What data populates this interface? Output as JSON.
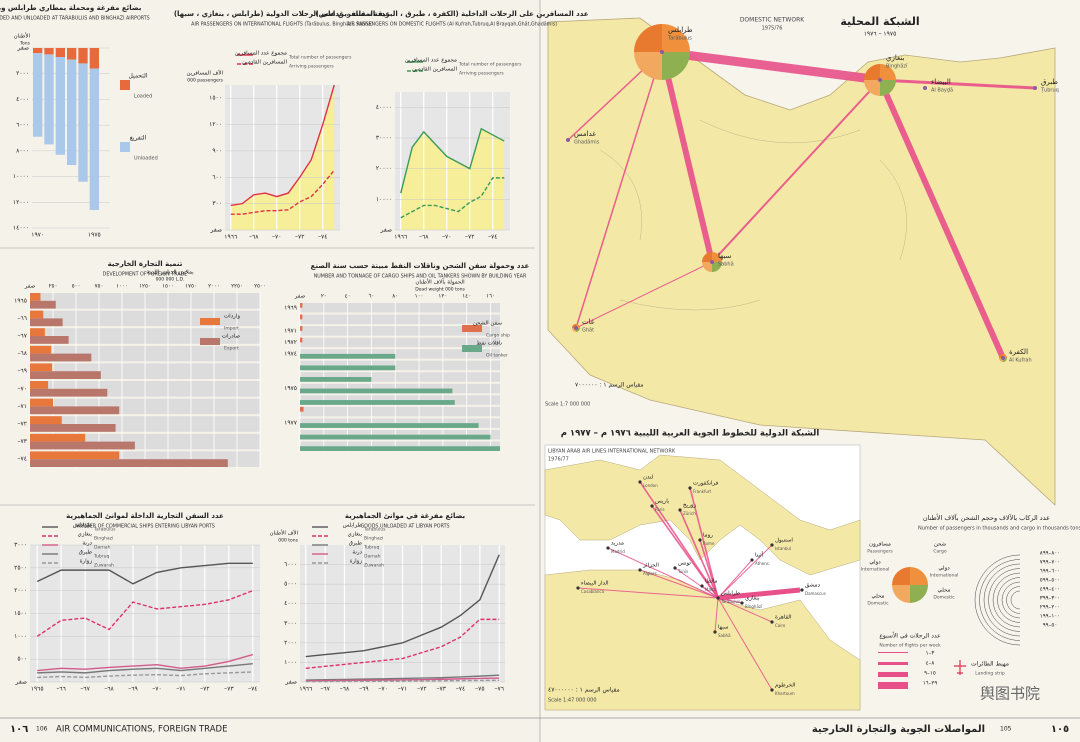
{
  "page": {
    "left_num_ar": "١٠٦",
    "left_num": "106",
    "left_title": "AIR COMMUNICATIONS, FOREIGN TRADE",
    "right_num": "105",
    "right_num_ar": "١٠٥",
    "right_title": "المواصلات الجوية والتجارة الخارجية",
    "watermark": "舆图书院"
  },
  "map": {
    "title_ar": "الشبكة المحلية",
    "title": "DOMESTIC NETWORK",
    "years": "1975/76",
    "years_ar": "١٩٧٥ – ١٩٧٦",
    "scale": "Scale 1:7 000 000",
    "scale_ar": "مقياس الرسم ١ : ٧٠٠٠٠٠٠",
    "cities": [
      {
        "name": "Tarābulus",
        "ar": "طرابلس"
      },
      {
        "name": "Binghāzī",
        "ar": "بنغازي"
      },
      {
        "name": "Sabhā",
        "ar": "سبها"
      },
      {
        "name": "Ghāt",
        "ar": "غات"
      },
      {
        "name": "Al Kufrah",
        "ar": "الكفرة"
      },
      {
        "name": "Ghadāmis",
        "ar": "غدامس"
      },
      {
        "name": "Al Bayḑā",
        "ar": "البيضاء"
      },
      {
        "name": "Ṭubruq",
        "ar": "طبرق"
      }
    ],
    "intl_title_ar": "الشبكة الدولية للخطوط الجوية العربية الليبية ١٩٧٦ م – ١٩٧٧ م",
    "intl_title": "LIBYAN ARAB AIR LINES INTERNATIONAL NETWORK",
    "intl_years": "1976/77",
    "intl_scale": "Scale 1:47 000 000",
    "intl_scale_ar": "مقياس الرسم ١ : ٤٧٠٠٠٠٠٠",
    "intl_cities": [
      {
        "name": "London",
        "ar": "لندن"
      },
      {
        "name": "Paris",
        "ar": "باريس"
      },
      {
        "name": "Frankfurt",
        "ar": "فرانكفورت"
      },
      {
        "name": "Zürich",
        "ar": "زوريخ"
      },
      {
        "name": "Rome",
        "ar": "روما"
      },
      {
        "name": "Madrid",
        "ar": "مدريد"
      },
      {
        "name": "Casablanca",
        "ar": "الدار البيضاء"
      },
      {
        "name": "Algiers",
        "ar": "الجزائر"
      },
      {
        "name": "Tunis",
        "ar": "تونس"
      },
      {
        "name": "Malta",
        "ar": "مالطا"
      },
      {
        "name": "Athens",
        "ar": "أثينا"
      },
      {
        "name": "Istanbul",
        "ar": "استنبول"
      },
      {
        "name": "Damascus",
        "ar": "دمشق"
      },
      {
        "name": "Cairo",
        "ar": "القاهرة"
      },
      {
        "name": "Khartoum",
        "ar": "الخرطوم"
      },
      {
        "name": "Tarābulus",
        "ar": "طرابلس"
      },
      {
        "name": "Binghāzī",
        "ar": "بنغازي"
      },
      {
        "name": "Sabhā",
        "ar": "سبها"
      }
    ],
    "legend_title_ar": "عدد الركاب بالآلاف وحجم الشحن بآلاف الأطنان",
    "legend_title": "Number of passengers in thousands and cargo in thousands  tons",
    "passengers": "Passengers",
    "passengers_ar": "مسافرون",
    "cargo": "Cargo",
    "cargo_ar": "شحن",
    "international": "International",
    "international_ar": "دولي",
    "domestic": "Domestic",
    "domestic_ar": "محلي",
    "flights_title_ar": "عدد الرحلات في الأسبوع",
    "flights_title": "Number of flights per week",
    "flights": [
      "٣–١",
      "٨–٤",
      "١٥–٩",
      "٢٩–١٦"
    ],
    "sizes": [
      "٨٠٠–٨٩٩",
      "٧٠٠–٧٩٩",
      "٦٠٠–٦٩٩",
      "٥٠٠–٥٩٩",
      "٤٠٠–٤٩٩",
      "٣٠٠–٣٩٩",
      "٢٠٠–٢٩٩",
      "١٠٠–١٩٩",
      "٥٠–٩٩"
    ],
    "airport_ar": "مهبط الطائرات",
    "airport": "Landing strip"
  },
  "chart_data": [
    {
      "type": "line",
      "title_ar": "عدد المسافرين على الرحلات الدولية (طرابلس ، بنغازي ، سبها)",
      "title": "AIR PASSENGERS ON INTERNATIONAL FLIGHTS (Tarābulus, Binghāzī, Sabhā)",
      "ylabel_ar": "الآف المسافرين",
      "ylabel": "000 passengers",
      "x": [
        1966,
        1967,
        1968,
        1969,
        1970,
        1971,
        1972,
        1973,
        1974,
        1975
      ],
      "xlim": [
        1965.5,
        1975.5
      ],
      "xticks": [
        {
          "value": 1966,
          "label": "١٩٦٦"
        },
        {
          "value": 1968,
          "label": "–٦٨"
        },
        {
          "value": 1970,
          "label": "–٧٠"
        },
        {
          "value": 1972,
          "label": "–٧٢"
        },
        {
          "value": 1974,
          "label": "–٧٤"
        }
      ],
      "ylim": [
        0,
        1650
      ],
      "yticks": [
        {
          "value": 0,
          "label": "صفر"
        },
        {
          "value": 300,
          "label": "٣٠٠"
        },
        {
          "value": 600,
          "label": "٦٠٠"
        },
        {
          "value": 900,
          "label": "٩٠٠"
        },
        {
          "value": 1200,
          "label": "١٢٠٠"
        },
        {
          "value": 1500,
          "label": "١٥٠٠"
        }
      ],
      "series": [
        {
          "name": "Total number of passengers",
          "name_ar": "مجموع عدد المسافرين",
          "color": "#e0304a",
          "fill": "#f6ee98",
          "values": [
            280,
            300,
            400,
            420,
            380,
            420,
            600,
            800,
            1200,
            1650
          ]
        },
        {
          "name": "Arriving passengers",
          "name_ar": "المسافرين القادمين",
          "color": "#e0304a",
          "dash": true,
          "values": [
            180,
            180,
            200,
            220,
            220,
            230,
            320,
            380,
            520,
            680
          ]
        }
      ]
    },
    {
      "type": "line",
      "title_ar": "عدد المسافرين على الرحلات الداخلية (الكفرة ، طبرق ، البريقة ، غات ، غدامس)",
      "title": "AIR PASSENGERS ON DOMESTIC FLIGHTS (Al Kufrah,Tubruq,Al Brayqah,Ghāt,Ghadāmis)",
      "x": [
        1966,
        1967,
        1968,
        1969,
        1970,
        1971,
        1972,
        1973,
        1974,
        1975
      ],
      "xlim": [
        1965.5,
        1975.5
      ],
      "xticks": [
        {
          "value": 1966,
          "label": "١٩٦٦"
        },
        {
          "value": 1968,
          "label": "–٦٨"
        },
        {
          "value": 1970,
          "label": "–٧٠"
        },
        {
          "value": 1972,
          "label": "–٧٢"
        },
        {
          "value": 1974,
          "label": "–٧٤"
        }
      ],
      "ylim": [
        0,
        45000
      ],
      "yticks": [
        {
          "value": 0,
          "label": "صفر"
        },
        {
          "value": 10000,
          "label": "١٠٠٠٠"
        },
        {
          "value": 20000,
          "label": "٢٠٠٠٠"
        },
        {
          "value": 30000,
          "label": "٣٠٠٠٠"
        },
        {
          "value": 40000,
          "label": "٤٠٠٠٠"
        }
      ],
      "series": [
        {
          "name": "Total number of passengers",
          "name_ar": "مجموع عدد المسافرين",
          "color": "#3c9a5a",
          "fill": "#f6ee98",
          "values": [
            12000,
            27000,
            32000,
            28000,
            24000,
            22000,
            20000,
            33000,
            31000,
            29000
          ]
        },
        {
          "name": "Arriving passengers",
          "name_ar": "المسافرين القادمين",
          "color": "#3c9a5a",
          "dash": true,
          "values": [
            4000,
            6000,
            8000,
            8000,
            7000,
            6000,
            9000,
            11000,
            17000,
            17000
          ]
        }
      ]
    },
    {
      "type": "bar-down",
      "title_ar": "بضائع مفرغة ومحملة بمطاري طرابلس وبنغازي",
      "title": "GOODS LOADED AND UNLOADED AT TARABULUS AND BINGHAZI AIRPORTS",
      "ylabel": "Tons",
      "ylabel_ar": "الأطنان",
      "categories": [
        "١٩٧٠",
        null,
        null,
        null,
        null,
        "١٩٧٥"
      ],
      "ylim": [
        0,
        14000
      ],
      "yticks": [
        {
          "value": 0,
          "label": "صفر"
        },
        {
          "value": 2000,
          "label": "٢٠٠٠"
        },
        {
          "value": 4000,
          "label": "٤٠٠٠"
        },
        {
          "value": 6000,
          "label": "٦٠٠٠"
        },
        {
          "value": 8000,
          "label": "٨٠٠٠"
        },
        {
          "value": 10000,
          "label": "١٠٠٠٠"
        },
        {
          "value": 12000,
          "label": "١٢٠٠٠"
        },
        {
          "value": 14000,
          "label": "١٤٠٠٠"
        }
      ],
      "series": [
        {
          "name": "Loaded",
          "name_ar": "التحميل",
          "color": "#e86a3c",
          "values": [
            400,
            500,
            700,
            900,
            1200,
            1600
          ]
        },
        {
          "name": "Unloaded",
          "name_ar": "التفريغ",
          "color": "#a9c8ea",
          "values": [
            6500,
            7000,
            7600,
            8200,
            9200,
            11000
          ]
        }
      ]
    },
    {
      "type": "hbar",
      "title": "DEVELOPMENT OF FOREIGN TRADE",
      "title_ar": "تنمية التجارة الخارجية",
      "xlabel": "000 000 L.D.",
      "xlabel_ar": "بملايين الدنانير الليبية",
      "categories": [
        "١٩٦٥",
        "–٦٦",
        "–٦٧",
        "–٦٨",
        "–٦٩",
        "–٧٠",
        "–٧١",
        "–٧٢",
        "–٧٣",
        "–٧٤"
      ],
      "xlim": [
        0,
        2500
      ],
      "xticks": [
        {
          "value": 0,
          "label": "صفر"
        },
        {
          "value": 250,
          "label": "٢٥٠"
        },
        {
          "value": 500,
          "label": "٥٠٠"
        },
        {
          "value": 750,
          "label": "٧٥٠"
        },
        {
          "value": 1000,
          "label": "١٠٠٠"
        },
        {
          "value": 1250,
          "label": "١٢٥٠"
        },
        {
          "value": 1500,
          "label": "١٥٠٠"
        },
        {
          "value": 1750,
          "label": "١٧٥٠"
        },
        {
          "value": 2000,
          "label": "٢٠٠٠"
        },
        {
          "value": 2250,
          "label": "٢٢٥٠"
        },
        {
          "value": 2500,
          "label": "٢٥٠٠"
        }
      ],
      "series": [
        {
          "name": "Import",
          "name_ar": "واردات",
          "color": "#e8773c",
          "values": [
            114,
            144,
            161,
            230,
            241,
            196,
            250,
            345,
            600,
            970
          ]
        },
        {
          "name": "Export",
          "name_ar": "صادرات",
          "color": "#b8776a",
          "values": [
            280,
            355,
            420,
            667,
            770,
            840,
            970,
            930,
            1140,
            2150
          ]
        }
      ]
    },
    {
      "type": "hbar",
      "title": "NUMBER AND TONNAGE OF CARGO SHIPS AND OIL TANKERS SHOWN BY BUILDING YEAR",
      "title_ar": "عدد وحمولة سفن الشحن وناقلات النفط مبينة حسب سنة الصنع",
      "xlabel": "Dead weight 000 tons",
      "xlabel_ar": "الحمولة بآلاف الأطنان",
      "categories": [
        "١٩٦٩",
        null,
        "١٩٧١",
        "١٩٧٢",
        "١٩٧٤",
        null,
        null,
        "١٩٧٥",
        null,
        null,
        "١٩٧٧",
        null,
        null
      ],
      "xlim": [
        0,
        168
      ],
      "xticks": [
        {
          "value": 0,
          "label": "صفر"
        },
        {
          "value": 20,
          "label": "٢٠"
        },
        {
          "value": 40,
          "label": "٤٠"
        },
        {
          "value": 60,
          "label": "٦٠"
        },
        {
          "value": 80,
          "label": "٨٠"
        },
        {
          "value": 100,
          "label": "١٠٠"
        },
        {
          "value": 120,
          "label": "١٢٠"
        },
        {
          "value": 140,
          "label": "١٤٠"
        },
        {
          "value": 160,
          "label": "١٦٠"
        }
      ],
      "series": [
        {
          "name": "Cargo ship",
          "name_ar": "سفن الشحن",
          "color": "#e0704c",
          "values": [
            2,
            2,
            2,
            2,
            0,
            0,
            0,
            0,
            0,
            3,
            0,
            0,
            0
          ]
        },
        {
          "name": "Oil tanker",
          "name_ar": "ناقلات نفط",
          "color": "#6aa88a",
          "values": [
            0,
            0,
            0,
            0,
            80,
            80,
            60,
            128,
            130,
            0,
            150,
            160,
            168
          ]
        }
      ]
    },
    {
      "type": "line",
      "title": "NUMBER OF COMMERCIAL SHIPS ENTERING LIBYAN PORTS",
      "title_ar": "عدد السفن التجارية الداخلة لموانئ الجماهيرية",
      "x": [
        1965,
        1966,
        1967,
        1968,
        1969,
        1970,
        1971,
        1972,
        1973,
        1974
      ],
      "xlim": [
        1964.7,
        1974.3
      ],
      "xticks": [
        {
          "value": 1965,
          "label": "١٩٦٥"
        },
        {
          "value": 1966,
          "label": "–٦٦"
        },
        {
          "value": 1967,
          "label": "–٦٧"
        },
        {
          "value": 1968,
          "label": "–٦٨"
        },
        {
          "value": 1969,
          "label": "–٦٩"
        },
        {
          "value": 1970,
          "label": "–٧٠"
        },
        {
          "value": 1971,
          "label": "–٧١"
        },
        {
          "value": 1972,
          "label": "–٧٢"
        },
        {
          "value": 1973,
          "label": "–٧٣"
        },
        {
          "value": 1974,
          "label": "–٧٤"
        }
      ],
      "ylim": [
        0,
        3000
      ],
      "yticks": [
        {
          "value": 0,
          "label": "صفر"
        },
        {
          "value": 500,
          "label": "٥٠٠"
        },
        {
          "value": 1000,
          "label": "١٠٠٠"
        },
        {
          "value": 1500,
          "label": "١٥٠٠"
        },
        {
          "value": 2000,
          "label": "٢٠٠٠"
        },
        {
          "value": 2500,
          "label": "٢٥٠٠"
        },
        {
          "value": 3000,
          "label": "٣٠٠٠"
        }
      ],
      "series": [
        {
          "name": "Tarabulus",
          "name_ar": "طرابلس",
          "color": "#555",
          "values": [
            2200,
            2450,
            2450,
            2450,
            2150,
            2400,
            2500,
            2550,
            2600,
            2600
          ]
        },
        {
          "name": "Binghazi",
          "name_ar": "بنغازي",
          "color": "#e0306a",
          "dash": true,
          "values": [
            1000,
            1350,
            1400,
            1150,
            1750,
            1600,
            1650,
            1700,
            1800,
            2000
          ]
        },
        {
          "name": "Darnah",
          "name_ar": "درنة",
          "color": "#d45a8a",
          "values": [
            250,
            300,
            280,
            320,
            350,
            380,
            300,
            350,
            450,
            600
          ]
        },
        {
          "name": "Tubruq",
          "name_ar": "طبرق",
          "color": "#777",
          "values": [
            200,
            220,
            200,
            250,
            280,
            300,
            250,
            300,
            350,
            400
          ]
        },
        {
          "name": "Zuwarah",
          "name_ar": "زوارة",
          "color": "#999",
          "dash": true,
          "values": [
            100,
            120,
            100,
            130,
            150,
            160,
            140,
            180,
            200,
            220
          ]
        }
      ]
    },
    {
      "type": "line",
      "title": "GOODS UNLOADED AT LIBYAN PORTS",
      "title_ar": "بضائع مفرغة في موانئ الجماهيرية",
      "ylabel": "000 tons",
      "ylabel_ar": "الآف الأطنان",
      "x": [
        1966,
        1967,
        1968,
        1969,
        1970,
        1971,
        1972,
        1973,
        1974,
        1975,
        1976
      ],
      "xlim": [
        1965.7,
        1976.3
      ],
      "xticks": [
        {
          "value": 1966,
          "label": "١٩٦٦"
        },
        {
          "value": 1967,
          "label": "–٦٧"
        },
        {
          "value": 1968,
          "label": "–٦٨"
        },
        {
          "value": 1969,
          "label": "–٦٩"
        },
        {
          "value": 1970,
          "label": "–٧٠"
        },
        {
          "value": 1971,
          "label": "–٧١"
        },
        {
          "value": 1972,
          "label": "–٧٢"
        },
        {
          "value": 1973,
          "label": "–٧٣"
        },
        {
          "value": 1974,
          "label": "–٧٤"
        },
        {
          "value": 1975,
          "label": "–٧٥"
        },
        {
          "value": 1976,
          "label": "–٧٦"
        }
      ],
      "ylim": [
        0,
        7000
      ],
      "yticks": [
        {
          "value": 0,
          "label": "صفر"
        },
        {
          "value": 1000,
          "label": "١٠٠٠"
        },
        {
          "value": 2000,
          "label": "٢٠٠٠"
        },
        {
          "value": 3000,
          "label": "٣٠٠٠"
        },
        {
          "value": 4000,
          "label": "٤٠٠٠"
        },
        {
          "value": 5000,
          "label": "٥٠٠٠"
        },
        {
          "value": 6000,
          "label": "٦٠٠٠"
        }
      ],
      "series": [
        {
          "name": "Tarabulus",
          "name_ar": "طرابلس",
          "color": "#555",
          "values": [
            1300,
            1400,
            1500,
            1600,
            1800,
            2000,
            2400,
            2800,
            3400,
            4200,
            6500
          ]
        },
        {
          "name": "Binghazi",
          "name_ar": "بنغازي",
          "color": "#e0306a",
          "dash": true,
          "values": [
            700,
            800,
            900,
            1000,
            1100,
            1200,
            1500,
            1800,
            2300,
            3200,
            3200
          ]
        },
        {
          "name": "Tubruq",
          "name_ar": "طبرق",
          "color": "#777",
          "values": [
            100,
            120,
            130,
            150,
            160,
            180,
            200,
            220,
            260,
            300,
            350
          ]
        },
        {
          "name": "Darnah",
          "name_ar": "درنة",
          "color": "#d45a8a",
          "values": [
            60,
            70,
            80,
            90,
            100,
            110,
            120,
            140,
            160,
            180,
            200
          ]
        },
        {
          "name": "Zuwarah",
          "name_ar": "زوارة",
          "color": "#999",
          "dash": true,
          "values": [
            20,
            25,
            30,
            35,
            40,
            45,
            50,
            60,
            70,
            80,
            90
          ]
        }
      ]
    }
  ]
}
